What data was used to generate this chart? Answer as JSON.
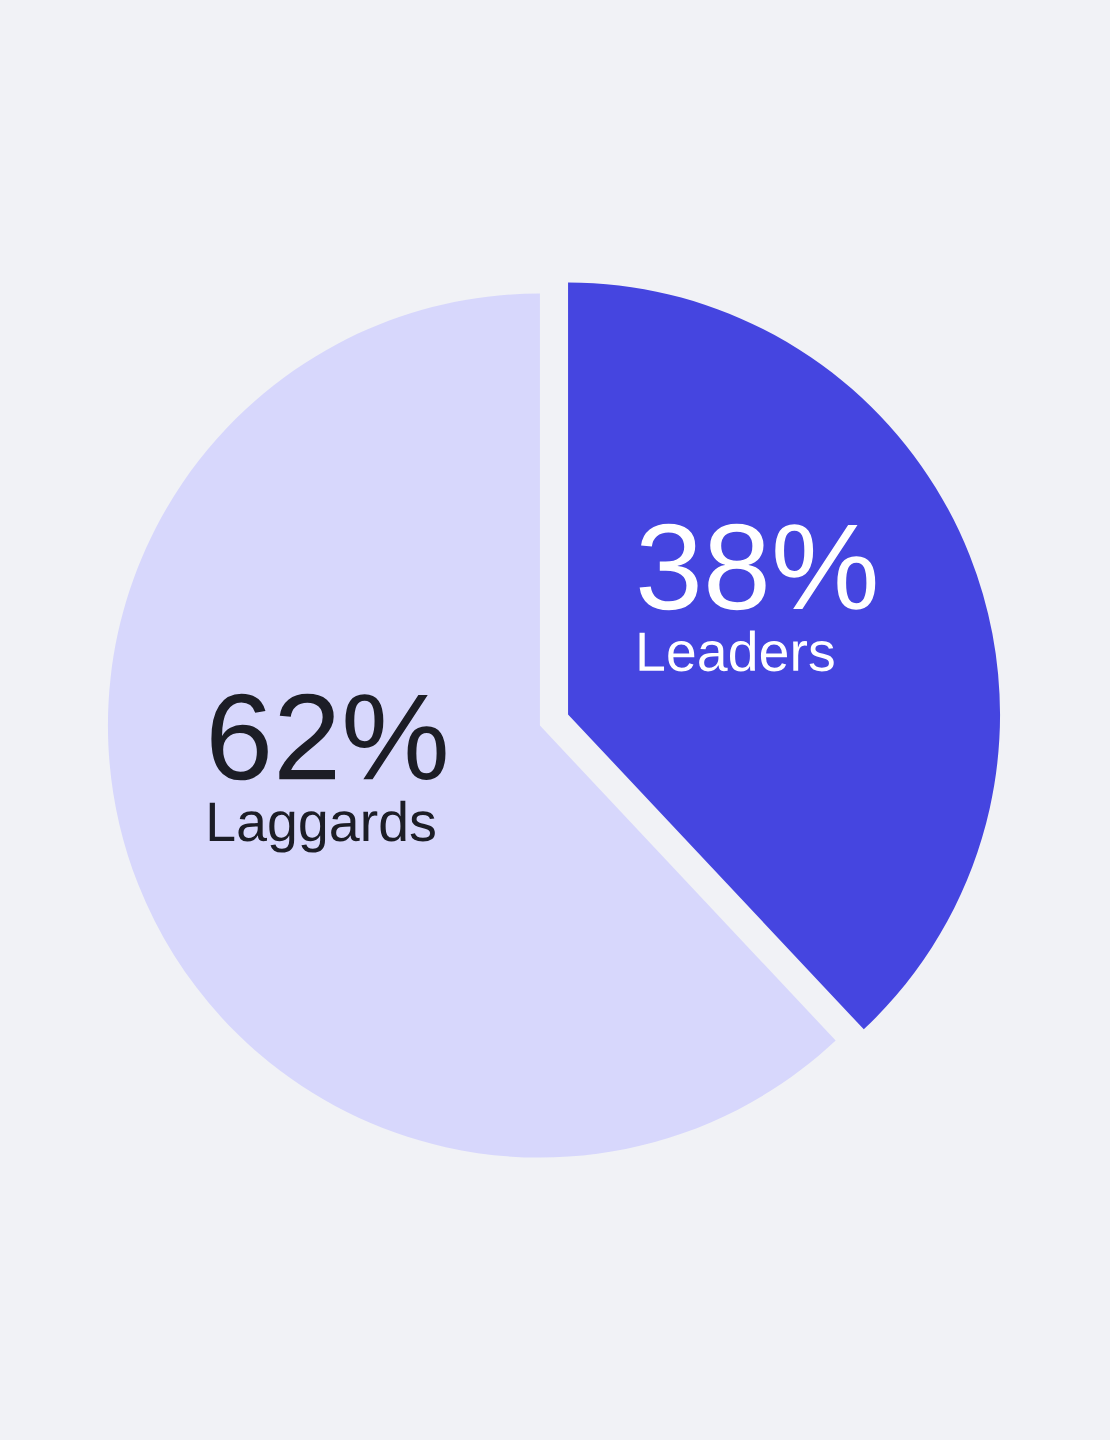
{
  "chart_data": {
    "type": "pie",
    "categories": [
      "Leaders",
      "Laggards"
    ],
    "values": [
      38,
      62
    ],
    "colors": [
      "#4545e0",
      "#d7d7fc"
    ],
    "value_labels": [
      "38%",
      "62%"
    ]
  }
}
